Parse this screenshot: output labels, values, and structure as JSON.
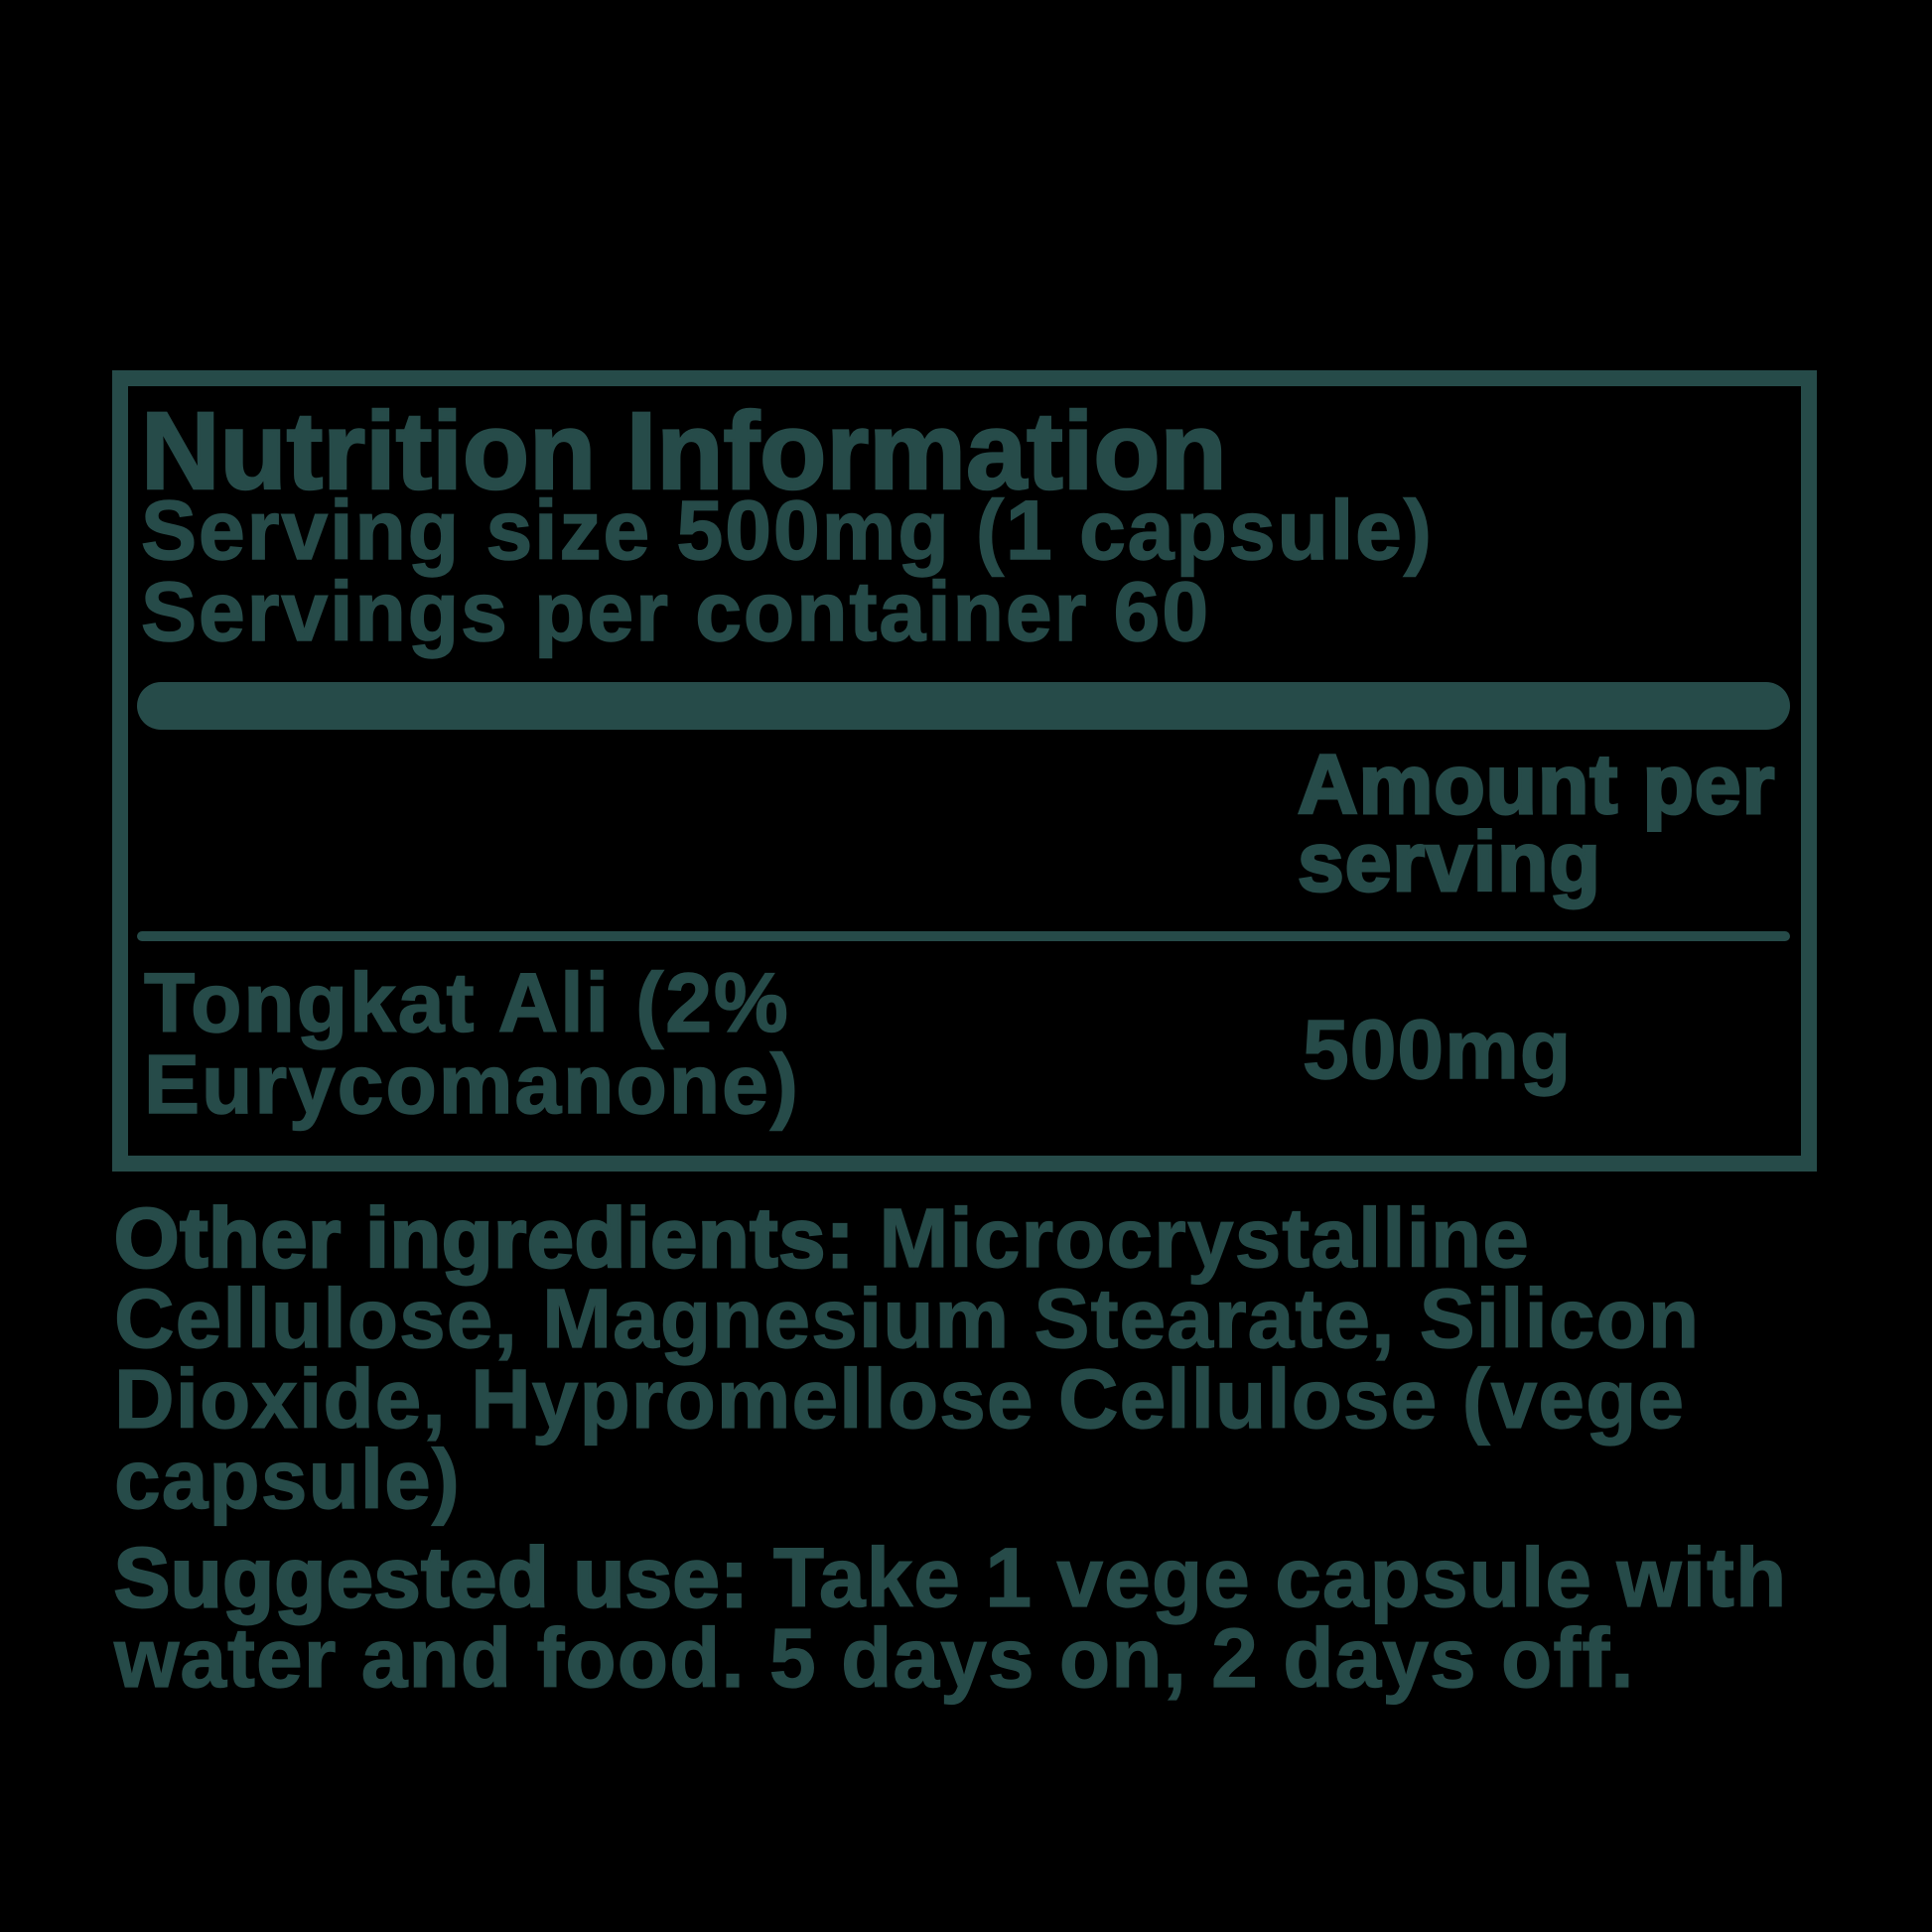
{
  "colors": {
    "background": "#000000",
    "ink": "#264b49"
  },
  "panel": {
    "title": "Nutrition Information",
    "serving_size_line": "Serving size 500mg (1 capsule)",
    "servings_per_container_line": "Servings per container 60",
    "amount_header_line1": "Amount per",
    "amount_header_line2": "serving",
    "rows": [
      {
        "name_line1": "Tongkat Ali (2%",
        "name_line2": "Eurycomanone)",
        "amount": "500mg"
      }
    ]
  },
  "other_ingredients": {
    "label": "Other ingredients:",
    "line1_rest": " Microcrystalline",
    "line2": "Cellulose, Magnesium Stearate, Silicon",
    "line3": "Dioxide, Hypromellose Cellulose (vege",
    "line4": "capsule)"
  },
  "suggested_use": {
    "label": "Suggested use:",
    "line1_rest": " Take 1 vege capsule with",
    "line2": "water and food. 5 days on, 2 days off."
  }
}
